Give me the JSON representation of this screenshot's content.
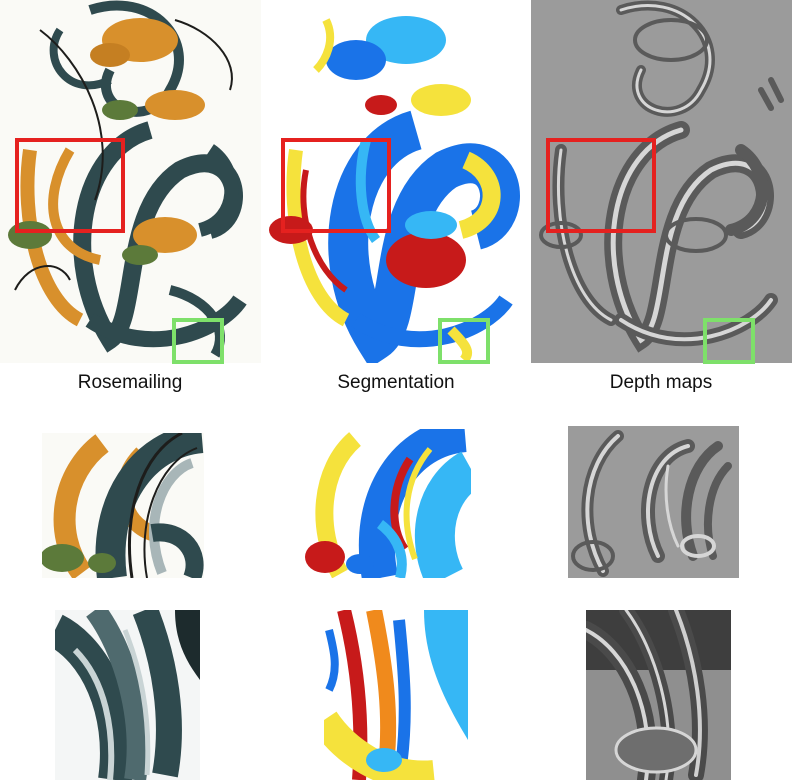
{
  "figure": {
    "captions": [
      "Rosemailing",
      "Segmentation",
      "Depth maps"
    ],
    "highlight_colors": {
      "red": "#e5211f",
      "green": "#7ee06a"
    },
    "panels": [
      {
        "type": "rosemailing",
        "palette": [
          "#d8902c",
          "#2f4a4e",
          "#5c7a3a",
          "#1d1d1b",
          "#ffffff"
        ]
      },
      {
        "type": "segmentation",
        "palette": [
          "#1a73e8",
          "#36b7f5",
          "#f5e23c",
          "#c71a1a",
          "#ffffff"
        ]
      },
      {
        "type": "depth-map",
        "palette": [
          "#9b9b9b",
          "#5a5a5a",
          "#d6d6d6"
        ]
      }
    ]
  }
}
